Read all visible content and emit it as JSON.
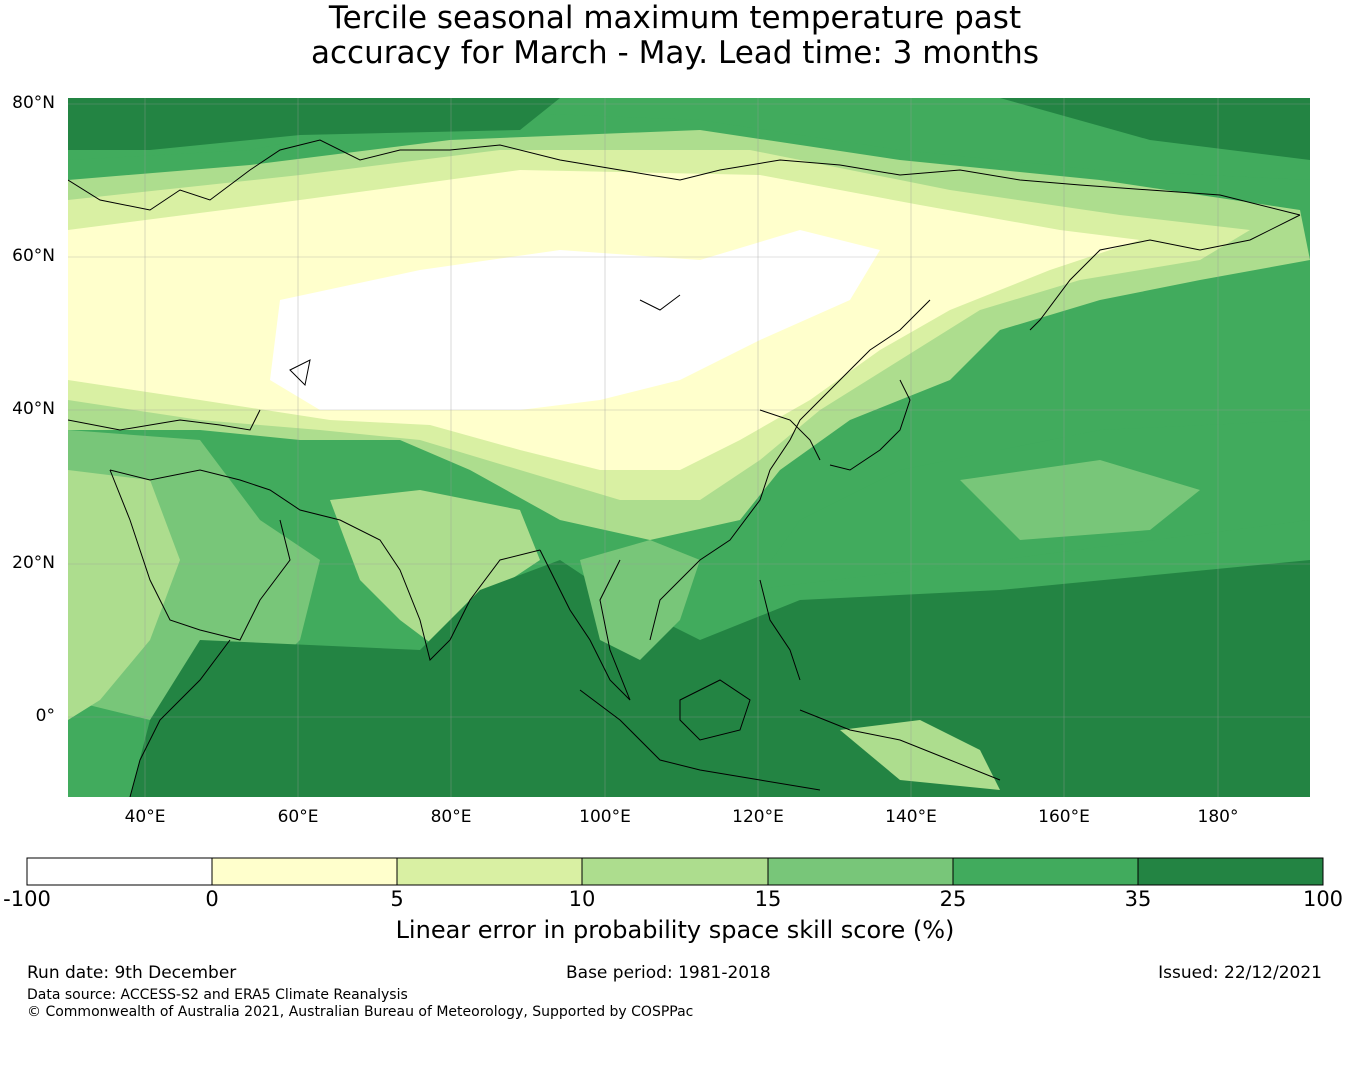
{
  "title_line1": "Tercile seasonal maximum temperature past",
  "title_line2": "accuracy for March - May. Lead time: 3 months",
  "map": {
    "lat_labels": [
      "80°N",
      "60°N",
      "40°N",
      "20°N",
      "0°"
    ],
    "lon_labels": [
      "40°E",
      "60°E",
      "80°E",
      "100°E",
      "120°E",
      "140°E",
      "160°E",
      "180°"
    ],
    "extent": {
      "lon_min": 30,
      "lon_max": 192,
      "lat_min": -10,
      "lat_max": 81
    }
  },
  "colorbar": {
    "bounds": [
      "-100",
      "0",
      "5",
      "10",
      "15",
      "25",
      "35",
      "100"
    ],
    "colors": [
      "#ffffff",
      "#ffffcc",
      "#d9f0a3",
      "#addd8e",
      "#78c679",
      "#41ab5d",
      "#238443"
    ],
    "label": "Linear error in probability space skill score (%)"
  },
  "footer": {
    "run_date": "Run date: 9th December",
    "base_period": "Base period: 1981-2018",
    "issued": "Issued: 22/12/2021",
    "data_source": "Data source: ACCESS-S2 and ERA5 Climate Reanalysis",
    "copyright": "© Commonwealth of Australia 2021, Australian Bureau of Meteorology, Supported by COSPPac"
  }
}
